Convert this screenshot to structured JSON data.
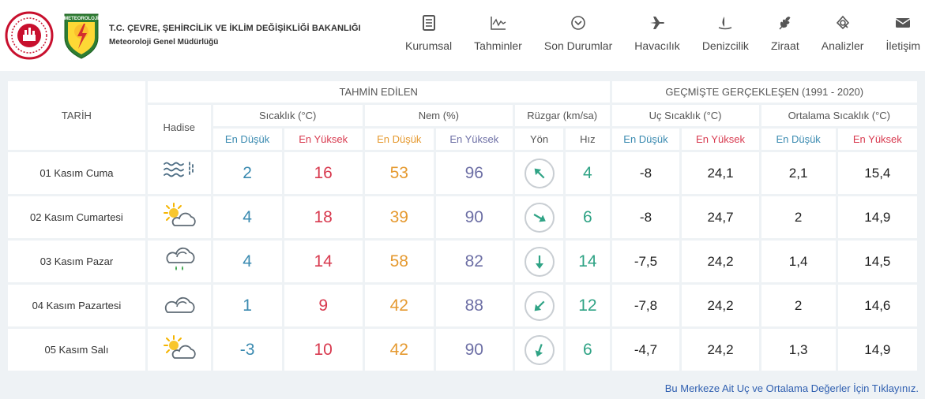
{
  "header": {
    "ministry": "T.C. ÇEVRE, ŞEHİRCİLİK VE İKLİM DEĞİŞİKLİĞİ BAKANLIĞI",
    "directorate": "Meteoroloji Genel Müdürlüğü",
    "logo_text": "METEOROLOJİ"
  },
  "nav": [
    {
      "label": "Kurumsal",
      "icon": "document-icon"
    },
    {
      "label": "Tahminler",
      "icon": "chart-icon"
    },
    {
      "label": "Son Durumlar",
      "icon": "chevron-circle-icon"
    },
    {
      "label": "Havacılık",
      "icon": "airplane-icon"
    },
    {
      "label": "Denizcilik",
      "icon": "sailboat-icon"
    },
    {
      "label": "Ziraat",
      "icon": "wheat-icon"
    },
    {
      "label": "Analizler",
      "icon": "analysis-icon"
    },
    {
      "label": "İletişim",
      "icon": "mail-icon"
    }
  ],
  "table": {
    "col_tarih": "TARİH",
    "group_forecast": "TAHMİN EDİLEN",
    "group_past": "GEÇMİŞTE GERÇEKLEŞEN (1991 - 2020)",
    "col_hadise": "Hadise",
    "col_sicaklik": "Sıcaklık (°C)",
    "col_nem": "Nem (%)",
    "col_ruzgar": "Rüzgar (km/sa)",
    "col_uc": "Uç Sıcaklık (°C)",
    "col_ort": "Ortalama Sıcaklık (°C)",
    "en_dusuk": "En Düşük",
    "en_yuksek": "En Yüksek",
    "yon": "Yön",
    "hiz": "Hız",
    "rows": [
      {
        "date": "01 Kasım Cuma",
        "icon": "fog-icon",
        "t_min": "2",
        "t_max": "16",
        "h_min": "53",
        "h_max": "96",
        "wind_dir": 135,
        "wind_speed": "4",
        "uc_min": "-8",
        "uc_max": "24,1",
        "ort_min": "2,1",
        "ort_max": "15,4"
      },
      {
        "date": "02 Kasım Cumartesi",
        "icon": "partly-cloudy-icon",
        "t_min": "4",
        "t_max": "18",
        "h_min": "39",
        "h_max": "90",
        "wind_dir": 300,
        "wind_speed": "6",
        "uc_min": "-8",
        "uc_max": "24,7",
        "ort_min": "2",
        "ort_max": "14,9"
      },
      {
        "date": "03 Kasım Pazar",
        "icon": "rain-cloud-icon",
        "t_min": "4",
        "t_max": "14",
        "h_min": "58",
        "h_max": "82",
        "wind_dir": 0,
        "wind_speed": "14",
        "uc_min": "-7,5",
        "uc_max": "24,2",
        "ort_min": "1,4",
        "ort_max": "14,5"
      },
      {
        "date": "04 Kasım Pazartesi",
        "icon": "cloudy-icon",
        "t_min": "1",
        "t_max": "9",
        "h_min": "42",
        "h_max": "88",
        "wind_dir": 45,
        "wind_speed": "12",
        "uc_min": "-7,8",
        "uc_max": "24,2",
        "ort_min": "2",
        "ort_max": "14,6"
      },
      {
        "date": "05 Kasım Salı",
        "icon": "partly-cloudy-icon",
        "t_min": "-3",
        "t_max": "10",
        "h_min": "42",
        "h_max": "90",
        "wind_dir": 20,
        "wind_speed": "6",
        "uc_min": "-4,7",
        "uc_max": "24,2",
        "ort_min": "1,3",
        "ort_max": "14,9"
      }
    ]
  },
  "footer": {
    "link": "Bu Merkeze Ait Uç ve Ortalama Değerler İçin Tıklayınız."
  },
  "colors": {
    "min": "#3a8ab0",
    "max": "#d83a4f",
    "humid_min": "#e5992f",
    "humid_max": "#6d6fa5",
    "wind": "#2fa385"
  }
}
